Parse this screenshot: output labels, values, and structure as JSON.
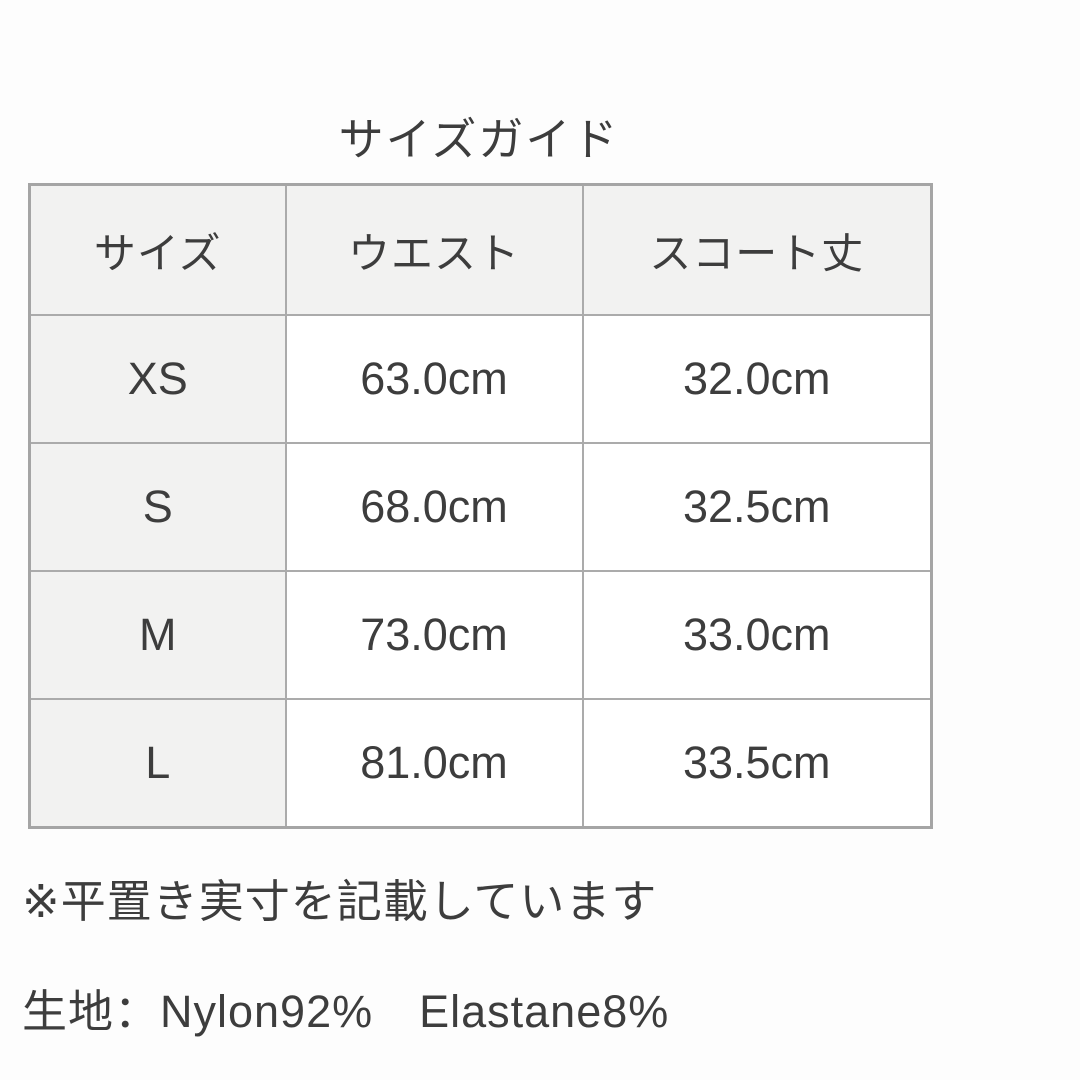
{
  "title": "サイズガイド",
  "table": {
    "headers": [
      "サイズ",
      "ウエスト",
      "スコート丈"
    ],
    "rows": [
      {
        "size": "XS",
        "waist": "63.0cm",
        "length": "32.0cm"
      },
      {
        "size": "S",
        "waist": "68.0cm",
        "length": "32.5cm"
      },
      {
        "size": "M",
        "waist": "73.0cm",
        "length": "33.0cm"
      },
      {
        "size": "L",
        "waist": "81.0cm",
        "length": "33.5cm"
      }
    ]
  },
  "notes": {
    "measurement": "※平置き実寸を記載しています",
    "fabric": "生地：Nylon92%　Elastane8%"
  },
  "colors": {
    "page_bg": "#fdfdfd",
    "cell_bg": "#ffffff",
    "header_bg": "#f2f2f1",
    "border": "#ababab",
    "text": "#3d3d3d"
  }
}
